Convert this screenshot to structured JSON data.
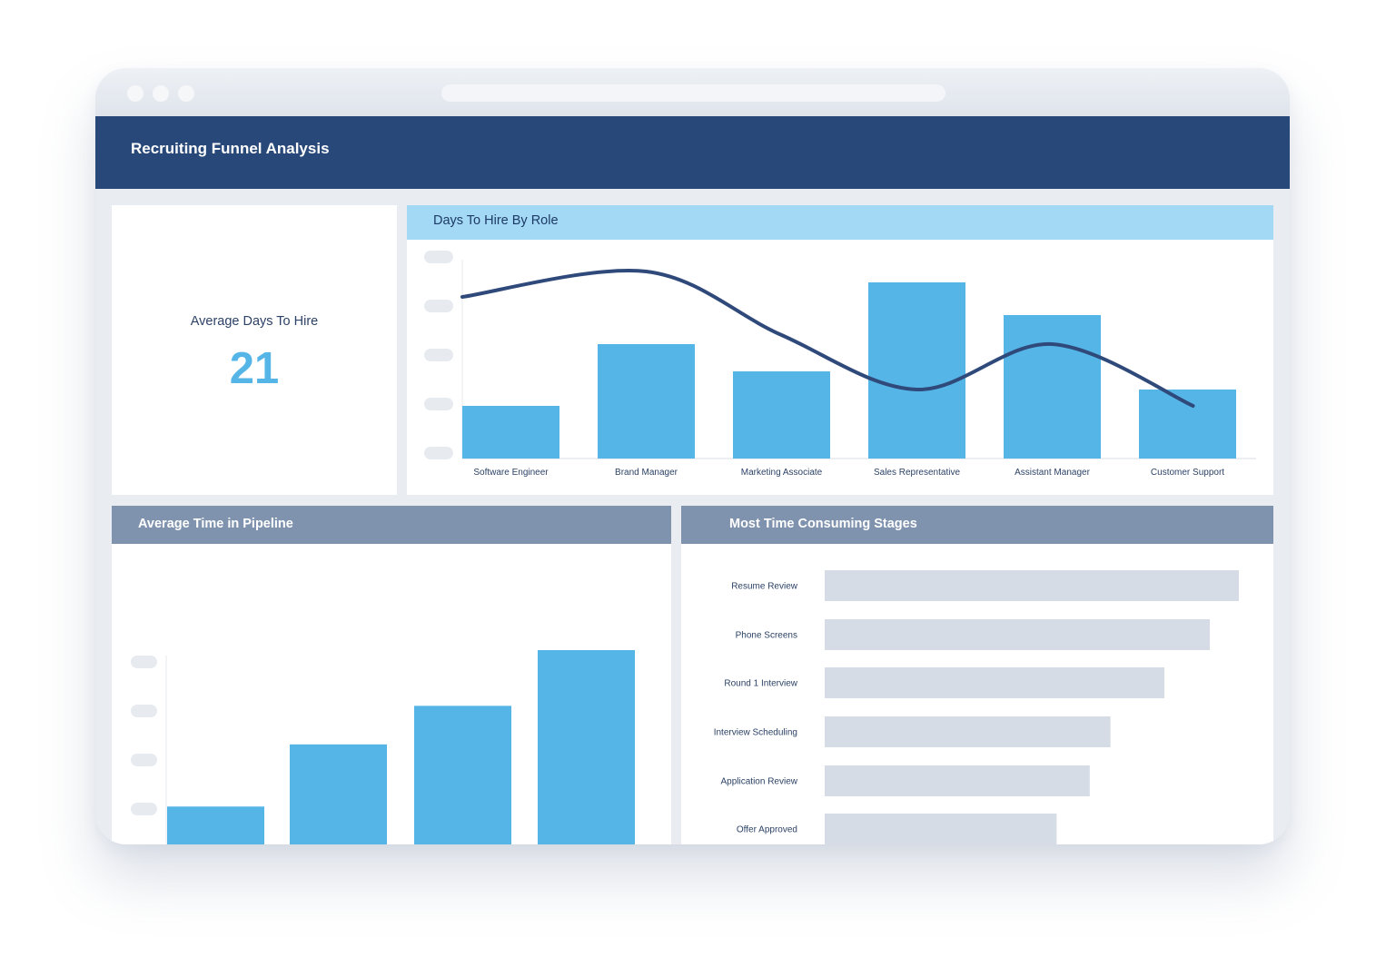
{
  "header": {
    "title": "Recruiting Funnel Analysis"
  },
  "kpi": {
    "label": "Average Days To Hire",
    "value": "21"
  },
  "colors": {
    "header": "#274878",
    "bar": "#56b5e7",
    "line": "#2f4a7a",
    "stage_bar": "#d5dce6",
    "role_header": "#a4d9f5",
    "panel_header": "#7f92ae"
  },
  "role_chart": {
    "title": "Days To Hire By Role"
  },
  "pipeline_chart": {
    "title": "Average Time in Pipeline"
  },
  "stages_chart": {
    "title": "Most Time Consuming Stages"
  },
  "chart_data": [
    {
      "type": "bar",
      "title": "Days To Hire By Role",
      "categories": [
        "Software Engineer",
        "Brand Manager",
        "Marketing Associate",
        "Sales Representative",
        "Assistant Manager",
        "Customer Support"
      ],
      "values": [
        29,
        63,
        48,
        97,
        79,
        38
      ],
      "line": [
        89,
        103,
        68,
        38,
        63,
        29
      ],
      "ylim": [
        0,
        105
      ],
      "grid": false
    },
    {
      "type": "bar",
      "title": "Average Time in Pipeline",
      "values": [
        27,
        56,
        74,
        100
      ],
      "ylim": [
        0,
        100
      ],
      "grid": false
    },
    {
      "type": "bar",
      "orientation": "horizontal",
      "title": "Most Time Consuming Stages",
      "categories": [
        "Resume Review",
        "Phone Screens",
        "Round 1 Interview",
        "Interview Scheduling",
        "Application Review",
        "Offer Approved"
      ],
      "values": [
        100,
        93,
        82,
        69,
        64,
        56
      ],
      "xlim": [
        0,
        100
      ],
      "grid": false
    }
  ]
}
